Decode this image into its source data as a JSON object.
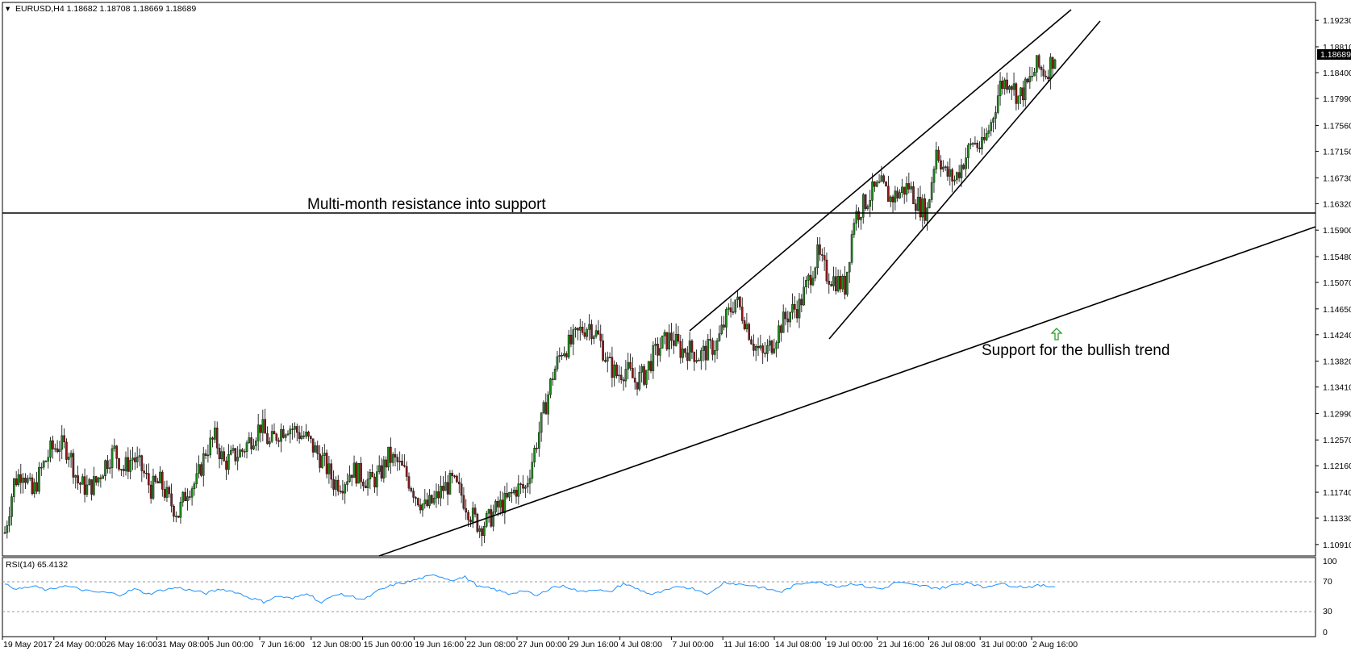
{
  "header": {
    "symbol_line": "EURUSD,H4  1.18682 1.18708 1.18669 1.18689",
    "last_price": "1.18689"
  },
  "annotations": {
    "resistance_note": "Multi-month resistance into support",
    "trend_note": "Support for the bullish trend"
  },
  "rsi": {
    "label": "RSI(14) 65.4132",
    "levels": [
      "100",
      "70",
      "30",
      "0"
    ]
  },
  "colors": {
    "bull_candle": "#1e8b1e",
    "bear_candle": "#8b1a1a",
    "wick": "#000000",
    "rsi_line": "#1e90ff",
    "price_tag_bg": "#000000",
    "arrow": "#2e9c2e"
  },
  "chart_data": {
    "type": "candlestick",
    "symbol": "EURUSD",
    "timeframe": "H4",
    "last": {
      "open": 1.18682,
      "high": 1.18708,
      "low": 1.18669,
      "close": 1.18689
    },
    "ylim": [
      1.1078,
      1.1945
    ],
    "y_ticks": [
      "1.19230",
      "1.18810",
      "1.18400",
      "1.17990",
      "1.17560",
      "1.17150",
      "1.16730",
      "1.16320",
      "1.15900",
      "1.15480",
      "1.15070",
      "1.14650",
      "1.14240",
      "1.13820",
      "1.13410",
      "1.12990",
      "1.12570",
      "1.12160",
      "1.11740",
      "1.11330",
      "1.10910"
    ],
    "x_ticks": [
      "19 May 2017",
      "24 May 00:00",
      "26 May 16:00",
      "31 May 08:00",
      "5 Jun 00:00",
      "7 Jun 16:00",
      "12 Jun 08:00",
      "15 Jun 00:00",
      "19 Jun 16:00",
      "22 Jun 08:00",
      "27 Jun 00:00",
      "29 Jun 16:00",
      "4 Jul 08:00",
      "7 Jul 00:00",
      "11 Jul 16:00",
      "14 Jul 08:00",
      "19 Jul 00:00",
      "21 Jul 16:00",
      "26 Jul 08:00",
      "31 Jul 00:00",
      "2 Aug 16:00"
    ],
    "close_path": [
      [
        0,
        1.111
      ],
      [
        4,
        1.119
      ],
      [
        8,
        1.121
      ],
      [
        12,
        1.117
      ],
      [
        16,
        1.121
      ],
      [
        20,
        1.124
      ],
      [
        24,
        1.125
      ],
      [
        28,
        1.124
      ],
      [
        32,
        1.119
      ],
      [
        36,
        1.118
      ],
      [
        40,
        1.119
      ],
      [
        44,
        1.122
      ],
      [
        48,
        1.124
      ],
      [
        52,
        1.121
      ],
      [
        56,
        1.123
      ],
      [
        60,
        1.121
      ],
      [
        64,
        1.118
      ],
      [
        68,
        1.119
      ],
      [
        72,
        1.116
      ],
      [
        76,
        1.114
      ],
      [
        80,
        1.118
      ],
      [
        84,
        1.119
      ],
      [
        88,
        1.124
      ],
      [
        92,
        1.126
      ],
      [
        96,
        1.122
      ],
      [
        100,
        1.123
      ],
      [
        104,
        1.124
      ],
      [
        108,
        1.126
      ],
      [
        112,
        1.128
      ],
      [
        116,
        1.125
      ],
      [
        120,
        1.127
      ],
      [
        124,
        1.128
      ],
      [
        128,
        1.127
      ],
      [
        132,
        1.126
      ],
      [
        136,
        1.124
      ],
      [
        140,
        1.122
      ],
      [
        144,
        1.119
      ],
      [
        148,
        1.119
      ],
      [
        152,
        1.121
      ],
      [
        156,
        1.12
      ],
      [
        160,
        1.119
      ],
      [
        164,
        1.12
      ],
      [
        168,
        1.123
      ],
      [
        172,
        1.122
      ],
      [
        176,
        1.12
      ],
      [
        180,
        1.117
      ],
      [
        184,
        1.115
      ],
      [
        188,
        1.116
      ],
      [
        192,
        1.118
      ],
      [
        196,
        1.119
      ],
      [
        200,
        1.117
      ],
      [
        204,
        1.114
      ],
      [
        208,
        1.112
      ],
      [
        212,
        1.113
      ],
      [
        216,
        1.115
      ],
      [
        220,
        1.116
      ],
      [
        224,
        1.118
      ],
      [
        228,
        1.118
      ],
      [
        232,
        1.124
      ],
      [
        236,
        1.13
      ],
      [
        240,
        1.136
      ],
      [
        244,
        1.14
      ],
      [
        248,
        1.141
      ],
      [
        252,
        1.143
      ],
      [
        256,
        1.144
      ],
      [
        260,
        1.142
      ],
      [
        264,
        1.138
      ],
      [
        268,
        1.136
      ],
      [
        272,
        1.137
      ],
      [
        276,
        1.135
      ],
      [
        280,
        1.136
      ],
      [
        284,
        1.139
      ],
      [
        288,
        1.141
      ],
      [
        292,
        1.142
      ],
      [
        296,
        1.14
      ],
      [
        300,
        1.14
      ],
      [
        304,
        1.139
      ],
      [
        308,
        1.14
      ],
      [
        312,
        1.141
      ],
      [
        316,
        1.145
      ],
      [
        320,
        1.148
      ],
      [
        324,
        1.145
      ],
      [
        328,
        1.141
      ],
      [
        332,
        1.139
      ],
      [
        336,
        1.141
      ],
      [
        340,
        1.144
      ],
      [
        344,
        1.146
      ],
      [
        348,
        1.147
      ],
      [
        352,
        1.151
      ],
      [
        356,
        1.155
      ],
      [
        360,
        1.152
      ],
      [
        364,
        1.151
      ],
      [
        368,
        1.15
      ],
      [
        372,
        1.161
      ],
      [
        376,
        1.163
      ],
      [
        380,
        1.165
      ],
      [
        384,
        1.166
      ],
      [
        388,
        1.164
      ],
      [
        392,
        1.165
      ],
      [
        396,
        1.166
      ],
      [
        400,
        1.163
      ],
      [
        404,
        1.162
      ],
      [
        408,
        1.172
      ],
      [
        412,
        1.168
      ],
      [
        416,
        1.167
      ],
      [
        420,
        1.17
      ],
      [
        424,
        1.173
      ],
      [
        428,
        1.172
      ],
      [
        432,
        1.176
      ],
      [
        436,
        1.182
      ],
      [
        440,
        1.183
      ],
      [
        444,
        1.18
      ],
      [
        448,
        1.182
      ],
      [
        452,
        1.185
      ],
      [
        456,
        1.184
      ],
      [
        460,
        1.1869
      ]
    ],
    "rsi_path": [
      [
        0,
        68
      ],
      [
        5,
        62
      ],
      [
        10,
        66
      ],
      [
        15,
        60
      ],
      [
        20,
        67
      ],
      [
        25,
        63
      ],
      [
        30,
        58
      ],
      [
        35,
        57
      ],
      [
        40,
        54
      ],
      [
        45,
        62
      ],
      [
        50,
        55
      ],
      [
        55,
        61
      ],
      [
        60,
        64
      ],
      [
        65,
        60
      ],
      [
        70,
        56
      ],
      [
        75,
        62
      ],
      [
        80,
        58
      ],
      [
        85,
        50
      ],
      [
        90,
        44
      ],
      [
        95,
        52
      ],
      [
        100,
        48
      ],
      [
        105,
        57
      ],
      [
        110,
        42
      ],
      [
        115,
        55
      ],
      [
        120,
        52
      ],
      [
        125,
        47
      ],
      [
        130,
        60
      ],
      [
        135,
        68
      ],
      [
        140,
        72
      ],
      [
        145,
        78
      ],
      [
        150,
        82
      ],
      [
        155,
        75
      ],
      [
        160,
        79
      ],
      [
        165,
        65
      ],
      [
        170,
        62
      ],
      [
        175,
        55
      ],
      [
        180,
        60
      ],
      [
        185,
        52
      ],
      [
        190,
        65
      ],
      [
        195,
        66
      ],
      [
        200,
        58
      ],
      [
        205,
        62
      ],
      [
        210,
        57
      ],
      [
        215,
        70
      ],
      [
        220,
        62
      ],
      [
        225,
        54
      ],
      [
        230,
        60
      ],
      [
        235,
        66
      ],
      [
        240,
        62
      ],
      [
        245,
        55
      ],
      [
        250,
        72
      ],
      [
        255,
        69
      ],
      [
        260,
        67
      ],
      [
        265,
        62
      ],
      [
        270,
        58
      ],
      [
        275,
        68
      ],
      [
        280,
        73
      ],
      [
        285,
        70
      ],
      [
        290,
        66
      ],
      [
        295,
        70
      ],
      [
        300,
        65
      ],
      [
        305,
        62
      ],
      [
        310,
        72
      ],
      [
        315,
        68
      ],
      [
        320,
        66
      ],
      [
        325,
        63
      ],
      [
        330,
        68
      ],
      [
        335,
        72
      ],
      [
        340,
        64
      ],
      [
        345,
        70
      ],
      [
        350,
        67
      ],
      [
        355,
        65
      ],
      [
        360,
        67
      ],
      [
        365,
        65.4132
      ]
    ]
  }
}
